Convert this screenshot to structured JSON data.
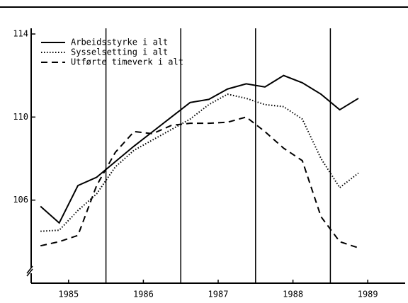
{
  "chart_data": {
    "type": "line",
    "x": [
      1985.125,
      1985.375,
      1985.625,
      1985.875,
      1986.125,
      1986.375,
      1986.625,
      1986.875,
      1987.125,
      1987.375,
      1987.625,
      1987.875,
      1988.125,
      1988.375,
      1988.625,
      1988.875,
      1989.125,
      1989.375
    ],
    "series": [
      {
        "name": "Arbeidsstyrke i alt",
        "color": "#000000",
        "dash": "solid",
        "values": [
          105.7,
          104.9,
          106.7,
          107.1,
          107.85,
          108.6,
          109.3,
          110.0,
          110.7,
          110.85,
          111.35,
          111.6,
          111.45,
          112.0,
          111.65,
          111.1,
          110.35,
          110.9
        ]
      },
      {
        "name": "Sysselsetting i alt",
        "color": "#000000",
        "dash": "dotted",
        "values": [
          104.5,
          104.55,
          105.5,
          106.3,
          107.6,
          108.4,
          108.9,
          109.4,
          109.9,
          110.6,
          111.1,
          110.9,
          110.6,
          110.5,
          109.9,
          108.0,
          106.6,
          107.3
        ]
      },
      {
        "name": "Utførte timeverk i alt",
        "color": "#000000",
        "dash": "dashed",
        "values": [
          103.8,
          104.0,
          104.3,
          106.7,
          108.3,
          109.3,
          109.2,
          109.6,
          109.7,
          109.7,
          109.75,
          110.0,
          109.3,
          108.5,
          107.9,
          105.2,
          104.0,
          103.7
        ]
      }
    ],
    "xlim": [
      1985,
      1990
    ],
    "xticks": [
      {
        "value": 1985.5,
        "label": "1985"
      },
      {
        "value": 1986.5,
        "label": "1986"
      },
      {
        "value": 1987.5,
        "label": "1987"
      },
      {
        "value": 1988.5,
        "label": "1988"
      },
      {
        "value": 1989.5,
        "label": "1989"
      }
    ],
    "vlines": [
      1986,
      1987,
      1988,
      1989
    ],
    "ylim": [
      102,
      114
    ],
    "yticks": [
      106,
      110,
      114
    ],
    "legend": "upper left"
  }
}
